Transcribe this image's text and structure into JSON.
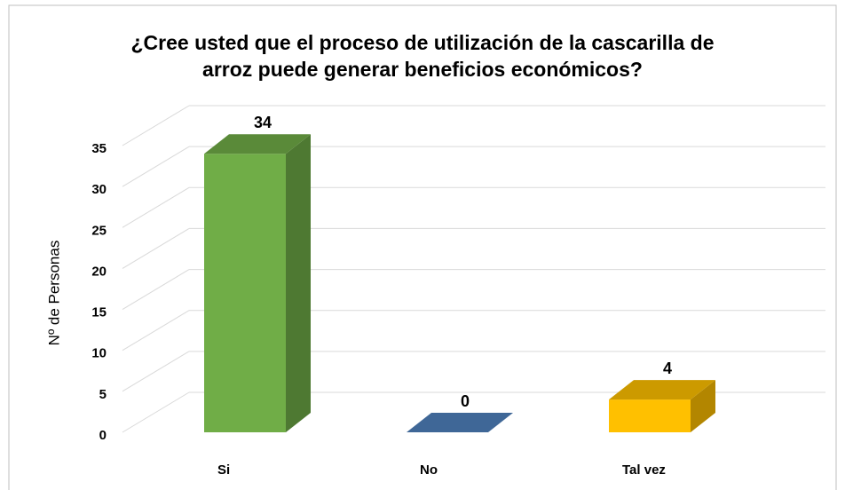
{
  "chart_data": {
    "type": "bar3d",
    "title": [
      "¿Cree usted que el proceso de utilización de la cascarilla de",
      "arroz puede generar beneficios económicos?"
    ],
    "y_label": "Nº de Personas",
    "categories": [
      "Si",
      "No",
      "Tal vez"
    ],
    "values": [
      34,
      0,
      4
    ],
    "colors": [
      "#70ad47",
      "#4f81bd",
      "#ffc000"
    ],
    "ylim": [
      0,
      35
    ],
    "yticks": [
      0,
      5,
      10,
      15,
      20,
      25,
      30,
      35
    ],
    "grid": true
  }
}
